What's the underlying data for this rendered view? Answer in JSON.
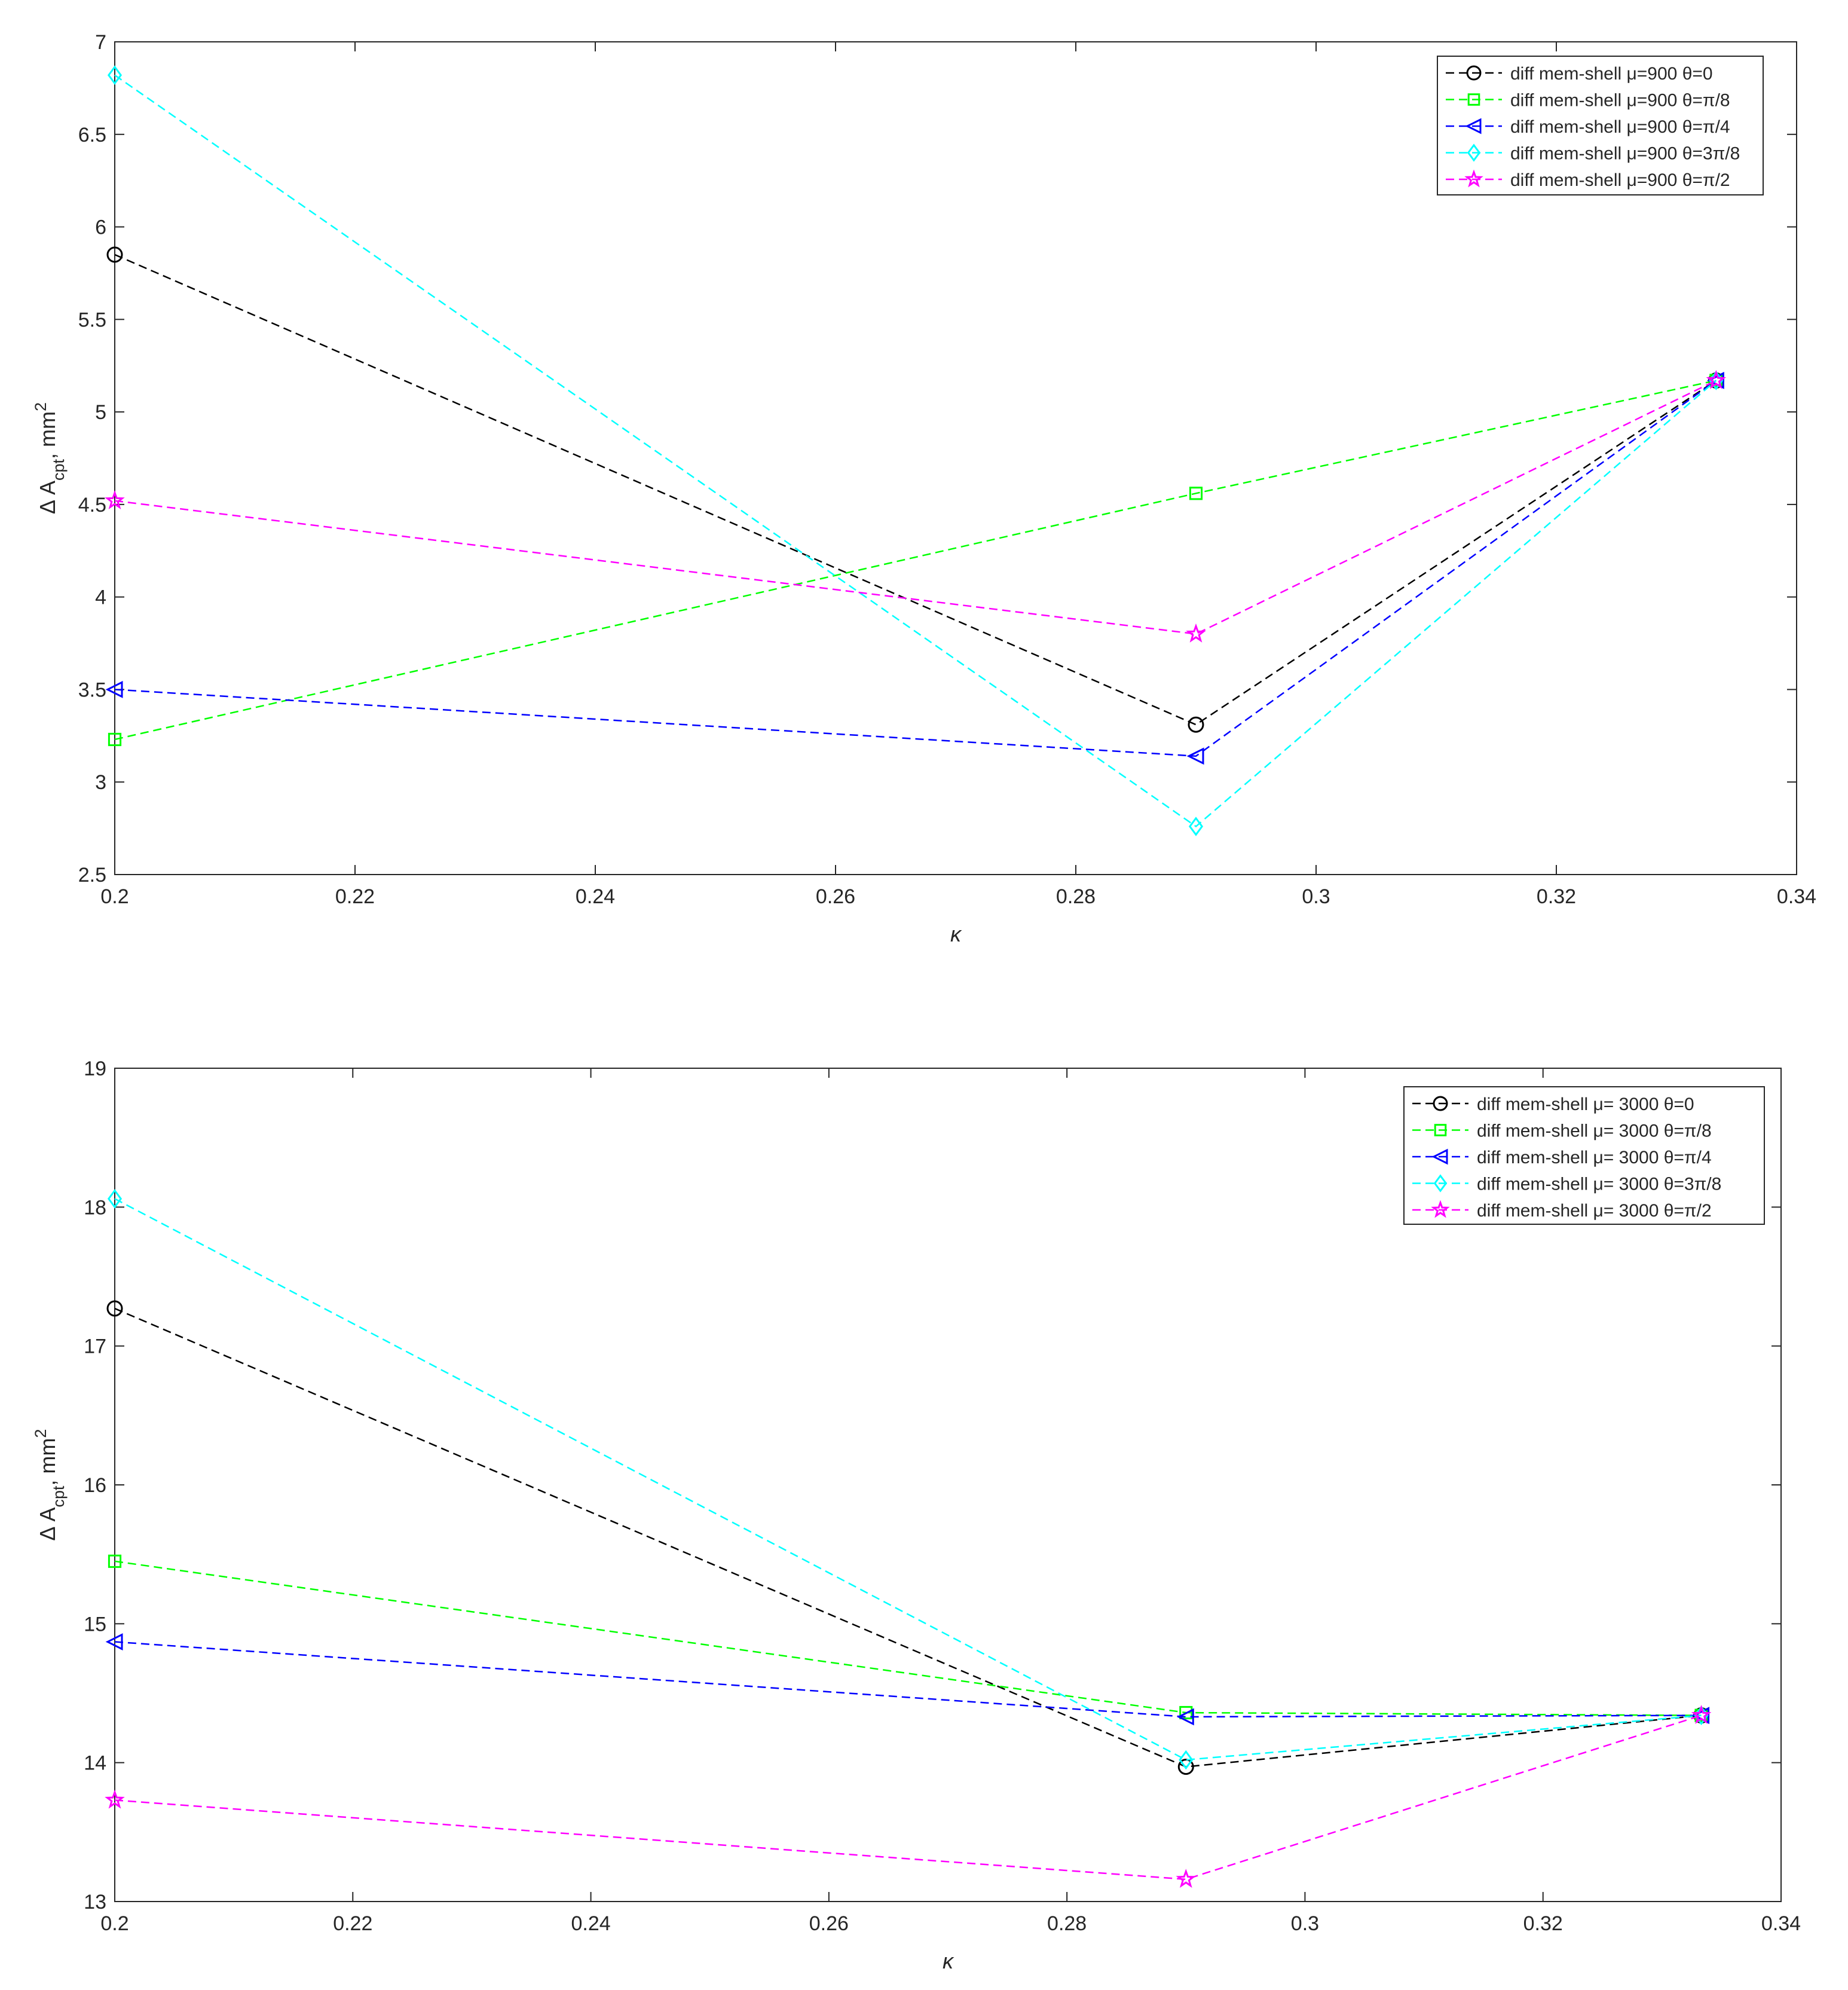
{
  "chart_data": [
    {
      "type": "line",
      "xlabel": "κ",
      "ylabel": "Δ A",
      "ylabel_sub": "cpt",
      "ylabel_unit": ", mm",
      "ylabel_sup": "2",
      "xlim": [
        0.2,
        0.34
      ],
      "ylim": [
        2.5,
        7
      ],
      "xticks": [
        "0.2",
        "0.22",
        "0.24",
        "0.26",
        "0.28",
        "0.3",
        "0.32",
        "0.34"
      ],
      "yticks": [
        "2.5",
        "3",
        "3.5",
        "4",
        "4.5",
        "5",
        "5.5",
        "6",
        "6.5",
        "7"
      ],
      "x": [
        0.2,
        0.29,
        0.3333
      ],
      "grid": false,
      "legend_position": "top-right",
      "series": [
        {
          "name": "diff mem-shell μ=900 θ=0",
          "marker": "circle",
          "color": "#000000",
          "values": [
            5.85,
            3.31,
            5.17
          ]
        },
        {
          "name": "diff mem-shell μ=900 θ=π/8",
          "marker": "square",
          "color": "#00ff00",
          "values": [
            3.23,
            4.56,
            5.17
          ]
        },
        {
          "name": "diff mem-shell μ=900 θ=π/4",
          "marker": "triangle-left",
          "color": "#0000ff",
          "values": [
            3.5,
            3.14,
            5.17
          ]
        },
        {
          "name": "diff mem-shell μ=900 θ=3π/8",
          "marker": "diamond",
          "color": "#00ffff",
          "values": [
            6.82,
            2.76,
            5.17
          ]
        },
        {
          "name": "diff mem-shell μ=900 θ=π/2",
          "marker": "pentagram",
          "color": "#ff00ff",
          "values": [
            4.52,
            3.8,
            5.17
          ]
        }
      ]
    },
    {
      "type": "line",
      "xlabel": "κ",
      "ylabel": "Δ A",
      "ylabel_sub": "cpt",
      "ylabel_unit": ", mm",
      "ylabel_sup": "2",
      "xlim": [
        0.2,
        0.34
      ],
      "ylim": [
        13,
        19
      ],
      "xticks": [
        "0.2",
        "0.22",
        "0.24",
        "0.26",
        "0.28",
        "0.3",
        "0.32",
        "0.34"
      ],
      "yticks": [
        "13",
        "14",
        "15",
        "16",
        "17",
        "18",
        "19"
      ],
      "x": [
        0.2,
        0.29,
        0.3333
      ],
      "grid": false,
      "legend_position": "top-right",
      "series": [
        {
          "name": "diff mem-shell μ= 3000 θ=0",
          "marker": "circle",
          "color": "#000000",
          "values": [
            17.27,
            13.97,
            14.34
          ]
        },
        {
          "name": "diff mem-shell μ= 3000 θ=π/8",
          "marker": "square",
          "color": "#00ff00",
          "values": [
            15.45,
            14.36,
            14.34
          ]
        },
        {
          "name": "diff mem-shell μ= 3000 θ=π/4",
          "marker": "triangle-left",
          "color": "#0000ff",
          "values": [
            14.87,
            14.33,
            14.34
          ]
        },
        {
          "name": "diff mem-shell μ= 3000 θ=3π/8",
          "marker": "diamond",
          "color": "#00ffff",
          "values": [
            18.06,
            14.02,
            14.34
          ]
        },
        {
          "name": "diff mem-shell μ= 3000 θ=π/2",
          "marker": "pentagram",
          "color": "#ff00ff",
          "values": [
            13.73,
            13.16,
            14.34
          ]
        }
      ]
    }
  ]
}
